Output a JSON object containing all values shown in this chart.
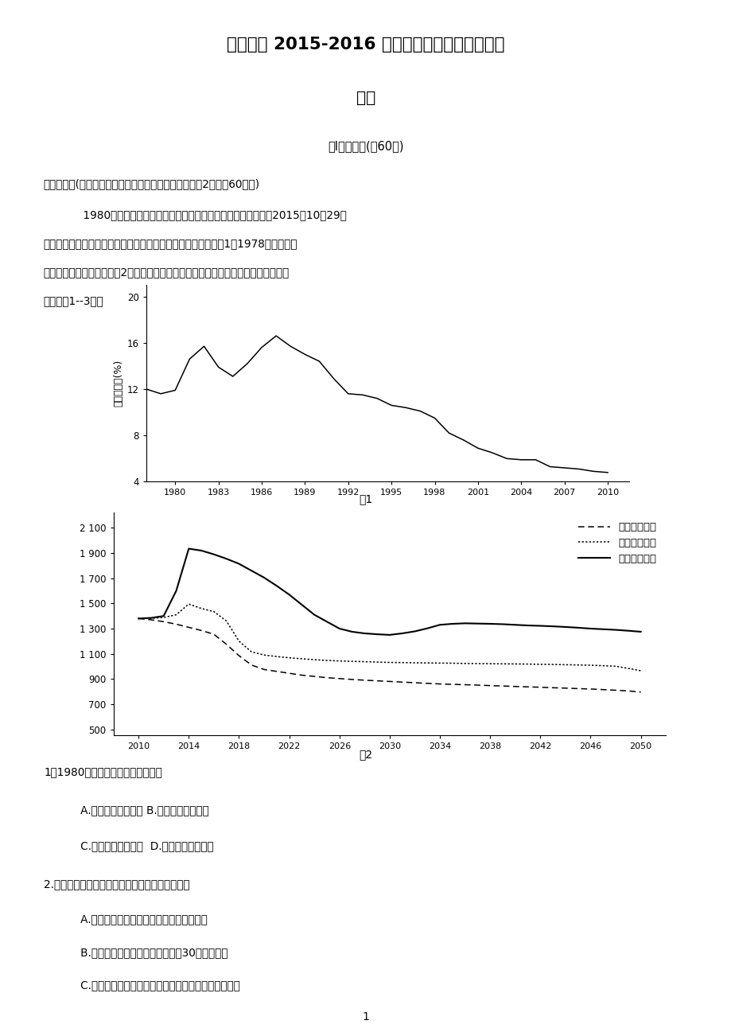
{
  "title1": "长郡中学 2015-2016 学年高二第一学期期末考试",
  "title2": "地理",
  "section_title": "第Ⅰ卷选择题(共60分)",
  "intro1": "一、选择题(每小题有且仅有一个选项是正确的，每小题2分，共60分。)",
  "intro2": "    1980年我国开始执行一对夫妇只能生育一胎的计划生育政策，2015年10月29日",
  "intro3": "十八届五中全会决定全面实施一对夫妇可生育两个孩子政策。图1是1978年以来我国",
  "intro4": "人口自然增长率变化图，图2是我国未来基于不同生育政策的出生人口规模预测图。读",
  "intro5": "图，回答1--3题。",
  "fig1_xlabel_ticks": [
    "1980",
    "1983",
    "1986",
    "1989",
    "1992",
    "1995",
    "1998",
    "2001",
    "2004",
    "2007",
    "2010"
  ],
  "fig1_ylabel_ticks": [
    4,
    8,
    12,
    16,
    20
  ],
  "fig1_ylabel_label": "自然增长率(%)",
  "fig1_caption": "图1",
  "fig1_x": [
    1978,
    1979,
    1980,
    1981,
    1982,
    1983,
    1984,
    1985,
    1986,
    1987,
    1988,
    1989,
    1990,
    1991,
    1992,
    1993,
    1994,
    1995,
    1996,
    1997,
    1998,
    1999,
    2000,
    2001,
    2002,
    2003,
    2004,
    2005,
    2006,
    2007,
    2008,
    2009,
    2010
  ],
  "fig1_y": [
    12.0,
    11.6,
    11.9,
    14.6,
    15.7,
    13.9,
    13.1,
    14.2,
    15.6,
    16.6,
    15.7,
    15.0,
    14.4,
    12.9,
    11.6,
    11.5,
    11.2,
    10.6,
    10.4,
    10.1,
    9.5,
    8.2,
    7.6,
    6.9,
    6.5,
    6.0,
    5.9,
    5.9,
    5.3,
    5.2,
    5.1,
    4.9,
    4.8
  ],
  "fig2_xlabel_ticks": [
    "2010",
    "2014",
    "2018",
    "2022",
    "2026",
    "2030",
    "2034",
    "2038",
    "2042",
    "2046",
    "2050"
  ],
  "fig2_ylabel_ticks": [
    500,
    700,
    900,
    1100,
    1300,
    1500,
    1700,
    1900,
    2100
  ],
  "fig2_caption": "图2",
  "fig2_x": [
    2010,
    2011,
    2012,
    2013,
    2014,
    2015,
    2016,
    2017,
    2018,
    2019,
    2020,
    2021,
    2022,
    2023,
    2024,
    2025,
    2026,
    2027,
    2028,
    2029,
    2030,
    2031,
    2032,
    2033,
    2034,
    2035,
    2036,
    2037,
    2038,
    2039,
    2040,
    2041,
    2042,
    2043,
    2044,
    2045,
    2046,
    2047,
    2048,
    2049,
    2050
  ],
  "fig2_y_policy1": [
    1380,
    1370,
    1355,
    1335,
    1310,
    1285,
    1255,
    1175,
    1085,
    1010,
    975,
    960,
    945,
    930,
    920,
    910,
    903,
    896,
    890,
    885,
    880,
    875,
    870,
    865,
    860,
    857,
    854,
    851,
    847,
    844,
    840,
    837,
    834,
    830,
    827,
    823,
    820,
    815,
    810,
    805,
    795
  ],
  "fig2_y_policy2": [
    1380,
    1382,
    1388,
    1410,
    1495,
    1460,
    1435,
    1360,
    1200,
    1115,
    1090,
    1078,
    1068,
    1060,
    1053,
    1047,
    1043,
    1040,
    1037,
    1034,
    1031,
    1030,
    1028,
    1027,
    1026,
    1025,
    1023,
    1022,
    1021,
    1020,
    1019,
    1018,
    1016,
    1015,
    1013,
    1011,
    1009,
    1005,
    1001,
    984,
    965
  ],
  "fig2_y_policy3": [
    1380,
    1385,
    1400,
    1600,
    1935,
    1920,
    1890,
    1855,
    1815,
    1760,
    1705,
    1640,
    1570,
    1490,
    1410,
    1355,
    1300,
    1275,
    1262,
    1255,
    1250,
    1262,
    1278,
    1302,
    1330,
    1338,
    1342,
    1340,
    1338,
    1335,
    1330,
    1325,
    1322,
    1318,
    1313,
    1307,
    1300,
    1295,
    1290,
    1283,
    1275
  ],
  "leg1": "生育政策不变",
  "leg2": "放开单独二孩",
  "leg3": "全面放开二孩",
  "q1_title": "1．1980年我国执行计划生育政策后",
  "q1_a": "   A.人口规模开始下降 B.人口规模持续增加",
  "q1_b": "   C.人口增速开始减慢  D.人口规模保持稳定",
  "q2_title": "2.不同生育政策可能对我国未来人口产生的影响是",
  "q2_a": "   A.全面放开二孩，人口增长速度将持续增加",
  "q2_b": "   B.生育政策不变，人口规模在未来30年持续下降",
  "q2_c": "   C.全面放开二孩，人口年龄结构将得到一定程度的改善",
  "page_num": "1"
}
